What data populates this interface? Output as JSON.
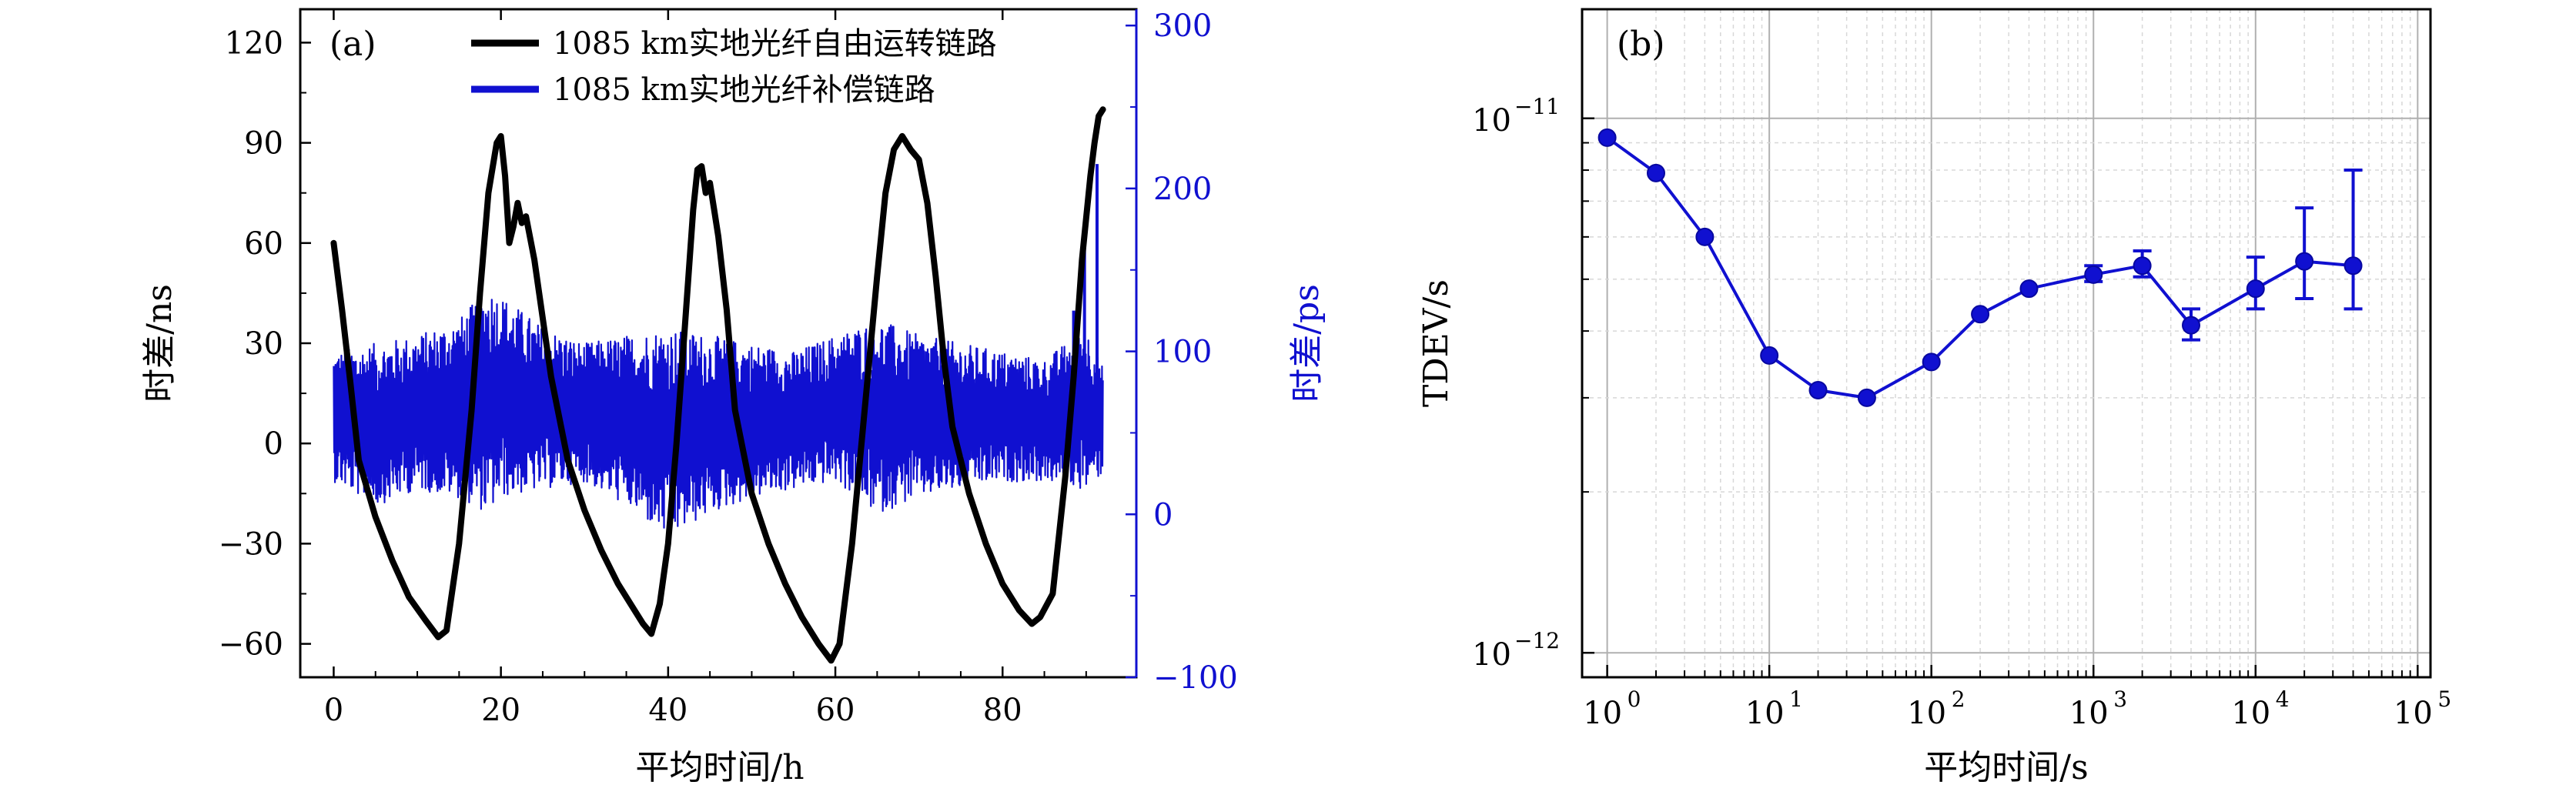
{
  "chart_data": [
    {
      "type": "line",
      "panel_label": "(a)",
      "xlabel": "平均时间/h",
      "ylabel_left": "时差/ns",
      "ylabel_right": "时差/ps",
      "x_ticks": [
        "0",
        "20",
        "40",
        "60",
        "80"
      ],
      "x_tick_values": [
        0,
        20,
        40,
        60,
        80
      ],
      "xlim": [
        -4,
        96
      ],
      "y_left_ticks": [
        "120",
        "90",
        "60",
        "30",
        "0",
        "−30",
        "−60"
      ],
      "y_left_tick_values": [
        120,
        90,
        60,
        30,
        0,
        -30,
        -60
      ],
      "ylim_left": [
        -70,
        130
      ],
      "y_right_ticks": [
        "300",
        "200",
        "100",
        "0",
        "−100"
      ],
      "y_right_tick_values": [
        300,
        200,
        100,
        0,
        -100
      ],
      "ylim_right": [
        -100,
        310
      ],
      "legend_position": "top",
      "colors": {
        "free": "#000000",
        "comp": "#1010d0"
      },
      "series": [
        {
          "name": "1085 km实地光纤自由运转链路",
          "axis": "left",
          "x": [
            0,
            1,
            2,
            3,
            5,
            7,
            9,
            11,
            12.5,
            13.5,
            15,
            16.5,
            17.5,
            18.5,
            19.5,
            20,
            20.5,
            21,
            21.5,
            22,
            22.5,
            23,
            24,
            26,
            28,
            30,
            32,
            34,
            36,
            37,
            38,
            39,
            40,
            41,
            42,
            43,
            43.5,
            44,
            44.5,
            45,
            45.5,
            46,
            47,
            48,
            50,
            52,
            54,
            56,
            58,
            59.5,
            60.5,
            62,
            63.5,
            65,
            66,
            67,
            68,
            69,
            70,
            71,
            72,
            73,
            74,
            76,
            78,
            80,
            82,
            83.5,
            84.5,
            86,
            87.5,
            88.5,
            89.5,
            90.5,
            91,
            91.5,
            92
          ],
          "y": [
            60,
            40,
            18,
            -5,
            -22,
            -35,
            -46,
            -53,
            -58,
            -56,
            -30,
            10,
            45,
            75,
            90,
            92,
            80,
            60,
            65,
            72,
            66,
            68,
            55,
            20,
            -5,
            -20,
            -32,
            -42,
            -50,
            -54,
            -57,
            -48,
            -30,
            0,
            35,
            70,
            82,
            83,
            75,
            78,
            70,
            62,
            40,
            10,
            -15,
            -30,
            -42,
            -52,
            -60,
            -65,
            -60,
            -30,
            10,
            50,
            75,
            88,
            92,
            88,
            85,
            72,
            50,
            25,
            5,
            -15,
            -30,
            -42,
            -50,
            -54,
            -52,
            -45,
            -10,
            20,
            55,
            80,
            90,
            98,
            100
          ]
        },
        {
          "name": "1085 km实地光纤补偿链路",
          "axis": "right",
          "envelope_x": [
            0,
            5,
            10,
            15,
            18.5,
            20,
            25,
            30,
            35,
            40,
            45,
            50,
            55,
            60,
            65,
            70,
            75,
            80,
            85,
            90,
            92
          ],
          "envelope_upper": [
            100,
            105,
            110,
            120,
            140,
            135,
            115,
            105,
            110,
            115,
            110,
            105,
            100,
            110,
            120,
            110,
            105,
            100,
            95,
            115,
            90
          ],
          "envelope_lower": [
            20,
            5,
            15,
            10,
            0,
            10,
            15,
            20,
            5,
            -15,
            0,
            10,
            15,
            20,
            0,
            10,
            15,
            20,
            20,
            15,
            25
          ],
          "spikes": [
            {
              "x": 91.3,
              "y": 215
            },
            {
              "x": 89.8,
              "y": 175
            },
            {
              "x": 88.5,
              "y": 125
            }
          ]
        }
      ]
    },
    {
      "type": "scatter",
      "panel_label": "(b)",
      "xlabel": "平均时间/s",
      "ylabel": "TDEV/s",
      "x_scale": "log",
      "y_scale": "log",
      "xlim": [
        0.7,
        120000
      ],
      "ylim": [
        9e-13,
        1.6e-11
      ],
      "grid": true,
      "x_ticks": [
        {
          "base": "10",
          "exp": "0",
          "value": 1
        },
        {
          "base": "10",
          "exp": "1",
          "value": 10
        },
        {
          "base": "10",
          "exp": "2",
          "value": 100
        },
        {
          "base": "10",
          "exp": "3",
          "value": 1000
        },
        {
          "base": "10",
          "exp": "4",
          "value": 10000
        },
        {
          "base": "10",
          "exp": "5",
          "value": 100000
        }
      ],
      "y_ticks": [
        {
          "base": "10",
          "exp": "−11",
          "value": 1e-11
        },
        {
          "base": "10",
          "exp": "−12",
          "value": 1e-12
        }
      ],
      "color": "#1010d0",
      "x": [
        1,
        2,
        4,
        10,
        20,
        40,
        100,
        200,
        400,
        1000,
        2000,
        4000,
        10000,
        20000,
        40000
      ],
      "y": [
        9.2e-12,
        7.9e-12,
        6e-12,
        3.6e-12,
        3.1e-12,
        3e-12,
        3.5e-12,
        4.3e-12,
        4.8e-12,
        5.1e-12,
        5.3e-12,
        4.1e-12,
        4.8e-12,
        5.4e-12,
        5.3e-12
      ],
      "err_low": [
        null,
        null,
        null,
        null,
        null,
        null,
        null,
        null,
        null,
        4.95e-12,
        5.05e-12,
        3.85e-12,
        4.4e-12,
        4.6e-12,
        4.4e-12
      ],
      "err_high": [
        null,
        null,
        null,
        null,
        null,
        null,
        null,
        null,
        null,
        5.3e-12,
        5.65e-12,
        4.4e-12,
        5.5e-12,
        6.8e-12,
        8e-12
      ]
    }
  ]
}
